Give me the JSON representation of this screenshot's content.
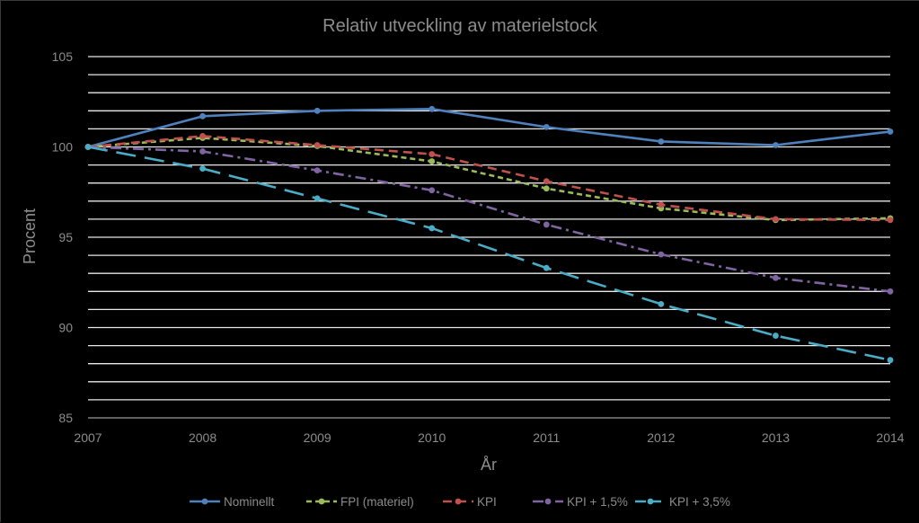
{
  "chart_data": {
    "type": "line",
    "title": "Relativ utveckling av materielstock",
    "xlabel": "År",
    "ylabel": "Procent",
    "x": [
      "2007",
      "2008",
      "2009",
      "2010",
      "2011",
      "2012",
      "2013",
      "2014"
    ],
    "ylim": [
      85,
      105
    ],
    "yticks": [
      "85",
      "90",
      "95",
      "100",
      "105"
    ],
    "grid": true,
    "legend_position": "bottom",
    "series": [
      {
        "name": "Nominellt",
        "color": "#4f81bd",
        "dash": "solid",
        "values": [
          100,
          101.7,
          102.0,
          102.1,
          101.1,
          100.3,
          100.1,
          100.85
        ]
      },
      {
        "name": "FPI (materiel)",
        "color": "#9bbb59",
        "dash": "short-dash",
        "values": [
          100,
          100.5,
          100.05,
          99.2,
          97.7,
          96.6,
          95.95,
          96.05
        ]
      },
      {
        "name": "KPI",
        "color": "#c0504d",
        "dash": "dash",
        "values": [
          100,
          100.6,
          100.1,
          99.6,
          98.1,
          96.8,
          96.0,
          95.95
        ]
      },
      {
        "name": "KPI + 1,5%",
        "color": "#8064a2",
        "dash": "dash-dot",
        "values": [
          100,
          99.75,
          98.7,
          97.6,
          95.7,
          94.05,
          92.75,
          92.0
        ]
      },
      {
        "name": "KPI + 3,5%",
        "color": "#4bacc6",
        "dash": "long-dash",
        "values": [
          100,
          98.8,
          97.15,
          95.5,
          93.3,
          91.3,
          89.55,
          88.2
        ]
      }
    ]
  }
}
